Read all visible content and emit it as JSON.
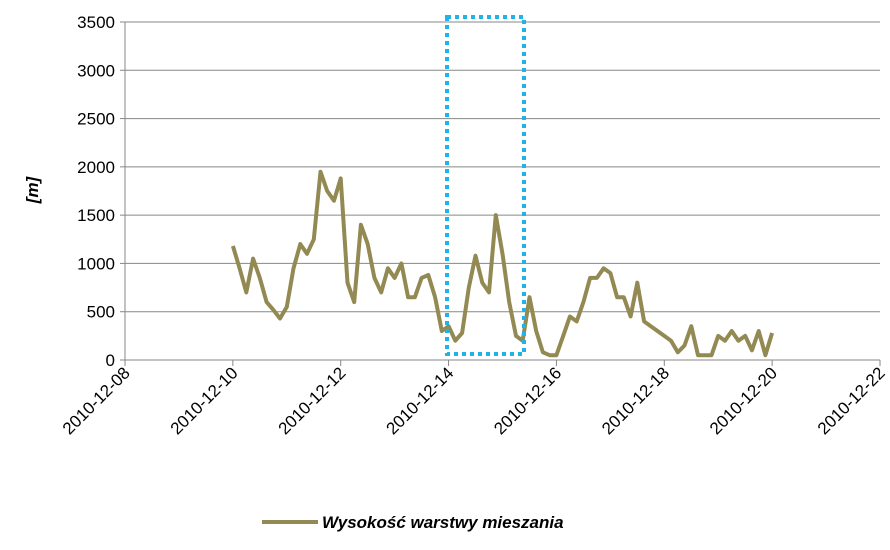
{
  "chart_data": {
    "type": "line",
    "y_label": "[m]",
    "x": [
      "2010-12-10 00:00",
      "2010-12-10 03:00",
      "2010-12-10 06:00",
      "2010-12-10 09:00",
      "2010-12-10 12:00",
      "2010-12-10 15:00",
      "2010-12-10 18:00",
      "2010-12-10 21:00",
      "2010-12-11 00:00",
      "2010-12-11 03:00",
      "2010-12-11 06:00",
      "2010-12-11 09:00",
      "2010-12-11 12:00",
      "2010-12-11 15:00",
      "2010-12-11 18:00",
      "2010-12-11 21:00",
      "2010-12-12 00:00",
      "2010-12-12 03:00",
      "2010-12-12 06:00",
      "2010-12-12 09:00",
      "2010-12-12 12:00",
      "2010-12-12 15:00",
      "2010-12-12 18:00",
      "2010-12-12 21:00",
      "2010-12-13 00:00",
      "2010-12-13 03:00",
      "2010-12-13 06:00",
      "2010-12-13 09:00",
      "2010-12-13 12:00",
      "2010-12-13 15:00",
      "2010-12-13 18:00",
      "2010-12-13 21:00",
      "2010-12-14 00:00",
      "2010-12-14 03:00",
      "2010-12-14 06:00",
      "2010-12-14 09:00",
      "2010-12-14 12:00",
      "2010-12-14 15:00",
      "2010-12-14 18:00",
      "2010-12-14 21:00",
      "2010-12-15 00:00",
      "2010-12-15 03:00",
      "2010-12-15 06:00",
      "2010-12-15 09:00",
      "2010-12-15 12:00",
      "2010-12-15 15:00",
      "2010-12-15 18:00",
      "2010-12-15 21:00",
      "2010-12-16 00:00",
      "2010-12-16 03:00",
      "2010-12-16 06:00",
      "2010-12-16 09:00",
      "2010-12-16 12:00",
      "2010-12-16 15:00",
      "2010-12-16 18:00",
      "2010-12-16 21:00",
      "2010-12-17 00:00",
      "2010-12-17 03:00",
      "2010-12-17 06:00",
      "2010-12-17 09:00",
      "2010-12-17 12:00",
      "2010-12-17 15:00",
      "2010-12-17 18:00",
      "2010-12-17 21:00",
      "2010-12-18 00:00",
      "2010-12-18 03:00",
      "2010-12-18 06:00",
      "2010-12-18 09:00",
      "2010-12-18 12:00",
      "2010-12-18 15:00",
      "2010-12-18 18:00",
      "2010-12-18 21:00",
      "2010-12-19 00:00",
      "2010-12-19 03:00",
      "2010-12-19 06:00",
      "2010-12-19 09:00",
      "2010-12-19 12:00",
      "2010-12-19 15:00",
      "2010-12-19 18:00",
      "2010-12-19 21:00",
      "2010-12-20 00:00"
    ],
    "series": [
      {
        "name": "Wysokość warstwy mieszania",
        "color": "#938953",
        "values": [
          1180,
          950,
          700,
          1050,
          850,
          600,
          520,
          430,
          550,
          950,
          1200,
          1100,
          1250,
          1950,
          1750,
          1650,
          1880,
          800,
          600,
          1400,
          1200,
          850,
          700,
          950,
          850,
          1000,
          650,
          650,
          850,
          880,
          650,
          300,
          350,
          200,
          280,
          750,
          1080,
          800,
          700,
          1500,
          1100,
          600,
          250,
          200,
          650,
          300,
          80,
          50,
          50,
          250,
          450,
          400,
          600,
          850,
          850,
          950,
          900,
          650,
          650,
          450,
          800,
          400,
          350,
          300,
          250,
          200,
          80,
          150,
          350,
          50,
          50,
          50,
          250,
          200,
          300,
          200,
          250,
          100,
          300,
          50,
          280
        ]
      }
    ],
    "xlim": [
      "2010-12-08",
      "2010-12-22"
    ],
    "xticks": [
      "2010-12-08",
      "2010-12-10",
      "2010-12-12",
      "2010-12-14",
      "2010-12-16",
      "2010-12-18",
      "2010-12-20",
      "2010-12-22"
    ],
    "ylim": [
      0,
      3500
    ],
    "yticks": [
      0,
      500,
      1000,
      1500,
      2000,
      2500,
      3000,
      3500
    ],
    "grid": true
  }
}
